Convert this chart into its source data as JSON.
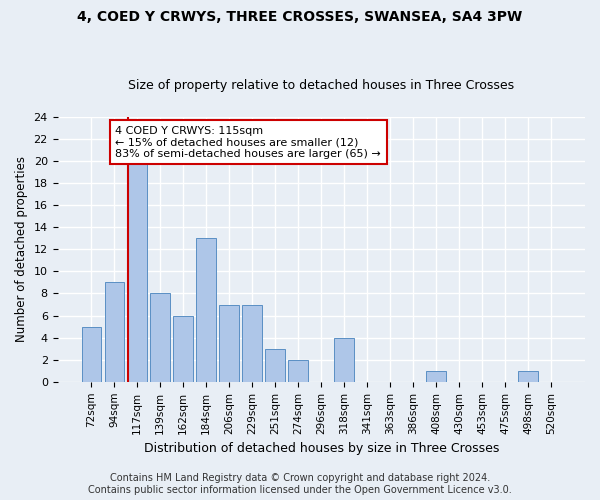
{
  "title": "4, COED Y CRWYS, THREE CROSSES, SWANSEA, SA4 3PW",
  "subtitle": "Size of property relative to detached houses in Three Crosses",
  "xlabel": "Distribution of detached houses by size in Three Crosses",
  "ylabel": "Number of detached properties",
  "bin_labels": [
    "72sqm",
    "94sqm",
    "117sqm",
    "139sqm",
    "162sqm",
    "184sqm",
    "206sqm",
    "229sqm",
    "251sqm",
    "274sqm",
    "296sqm",
    "318sqm",
    "341sqm",
    "363sqm",
    "386sqm",
    "408sqm",
    "430sqm",
    "453sqm",
    "475sqm",
    "498sqm",
    "520sqm"
  ],
  "bar_values": [
    5,
    9,
    20,
    8,
    6,
    13,
    7,
    7,
    3,
    2,
    0,
    4,
    0,
    0,
    0,
    1,
    0,
    0,
    0,
    1,
    0
  ],
  "bar_color": "#aec6e8",
  "bar_edgecolor": "#5a8fc4",
  "vline_x_index": 2,
  "vline_color": "#cc0000",
  "annotation_text": "4 COED Y CRWYS: 115sqm\n← 15% of detached houses are smaller (12)\n83% of semi-detached houses are larger (65) →",
  "annotation_box_color": "#ffffff",
  "annotation_box_edgecolor": "#cc0000",
  "ylim": [
    0,
    24
  ],
  "yticks": [
    0,
    2,
    4,
    6,
    8,
    10,
    12,
    14,
    16,
    18,
    20,
    22,
    24
  ],
  "footer": "Contains HM Land Registry data © Crown copyright and database right 2024.\nContains public sector information licensed under the Open Government Licence v3.0.",
  "bg_color": "#e8eef5",
  "plot_bg_color": "#e8eef5",
  "grid_color": "#ffffff",
  "title_fontsize": 10,
  "subtitle_fontsize": 9,
  "footer_fontsize": 7
}
